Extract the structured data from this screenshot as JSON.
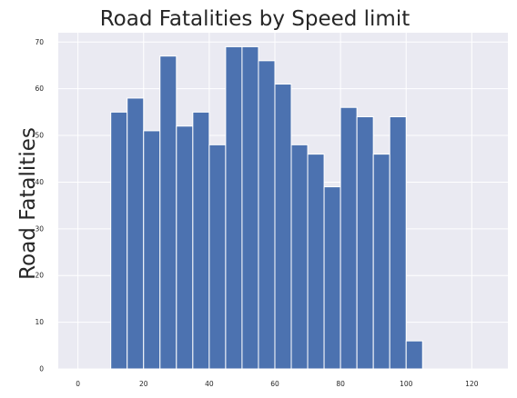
{
  "chart_data": {
    "type": "bar",
    "title": "Road Fatalities by Speed limit",
    "xlabel": "",
    "ylabel": "Road Fatalities",
    "bin_width": 5,
    "bin_starts": [
      10,
      15,
      20,
      25,
      30,
      35,
      40,
      45,
      50,
      55,
      60,
      65,
      70,
      75,
      80,
      85,
      90,
      95,
      100
    ],
    "values": [
      55,
      58,
      51,
      67,
      52,
      55,
      48,
      69,
      69,
      66,
      61,
      48,
      46,
      39,
      56,
      54,
      46,
      54,
      6
    ],
    "xlim": [
      -6,
      131
    ],
    "ylim": [
      0,
      72
    ],
    "xticks": [
      0,
      20,
      40,
      60,
      80,
      100,
      120
    ],
    "yticks": [
      0,
      10,
      20,
      30,
      40,
      50,
      60,
      70
    ],
    "grid": true,
    "bar_color": "#4c72b0",
    "background_color": "#eaeaf2"
  }
}
